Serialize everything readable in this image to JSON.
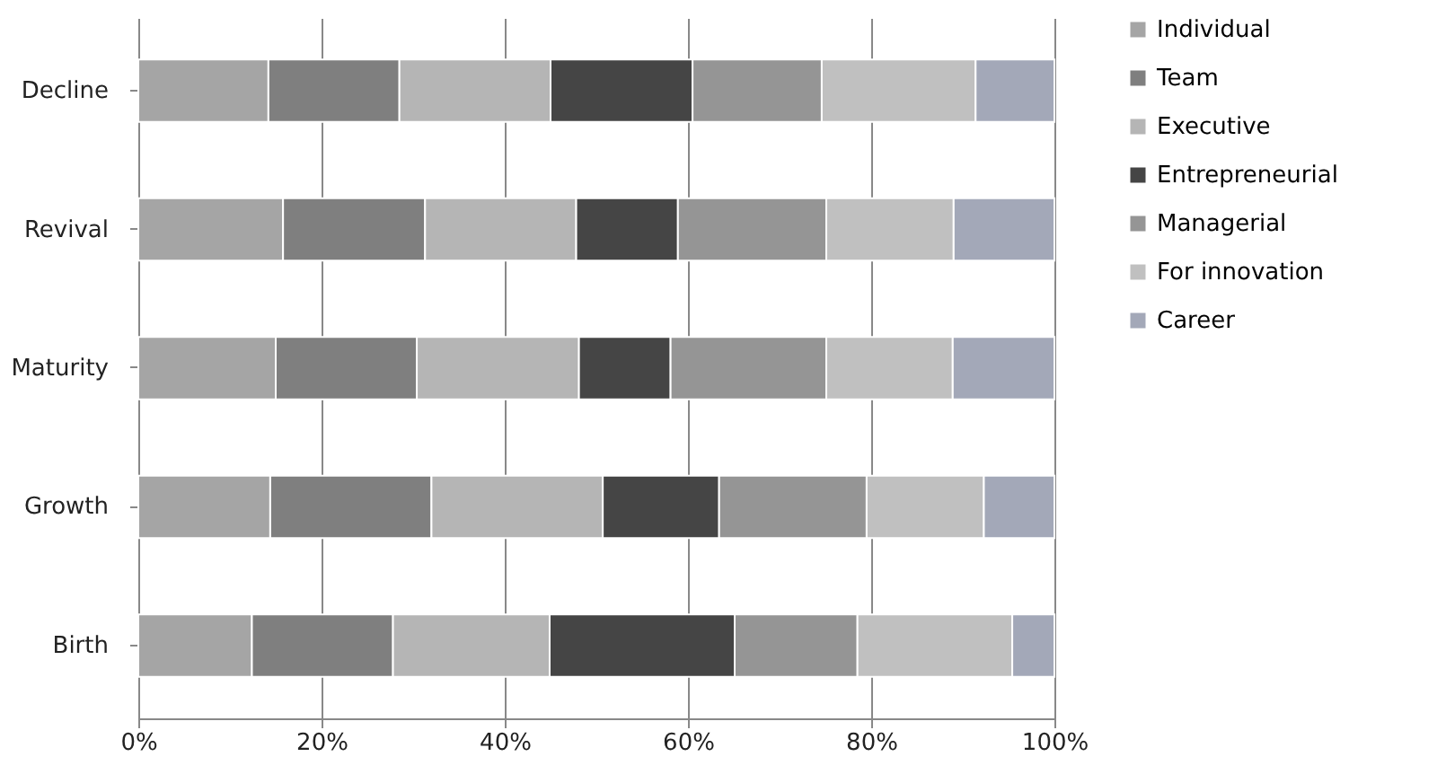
{
  "chart_data": {
    "type": "bar",
    "orientation": "horizontal",
    "stacked": true,
    "categories": [
      "Decline",
      "Revival",
      "Maturity",
      "Growth",
      "Birth"
    ],
    "series": [
      {
        "name": "Individual",
        "color": "#a5a5a5",
        "values": [
          14.2,
          15.8,
          15.0,
          14.4,
          12.4
        ]
      },
      {
        "name": "Team",
        "color": "#7f7f7f",
        "values": [
          14.3,
          15.5,
          15.4,
          17.6,
          15.4
        ]
      },
      {
        "name": "Executive",
        "color": "#b5b5b5",
        "values": [
          16.5,
          16.5,
          17.7,
          18.7,
          17.1
        ]
      },
      {
        "name": "Entrepreneurial",
        "color": "#454545",
        "values": [
          15.5,
          11.1,
          10.0,
          12.7,
          20.2
        ]
      },
      {
        "name": "Managerial",
        "color": "#959595",
        "values": [
          14.1,
          16.2,
          17.0,
          16.1,
          13.4
        ]
      },
      {
        "name": "For innovation",
        "color": "#c0c0c0",
        "values": [
          16.8,
          13.9,
          13.8,
          12.8,
          16.9
        ]
      },
      {
        "name": "Career",
        "color": "#a3a8b8",
        "values": [
          8.6,
          11.0,
          11.1,
          7.7,
          4.6
        ]
      }
    ],
    "xlim": [
      0,
      100
    ],
    "xticks": [
      {
        "value": 0,
        "label": "0%"
      },
      {
        "value": 20,
        "label": "20%"
      },
      {
        "value": 40,
        "label": "40%"
      },
      {
        "value": 60,
        "label": "60%"
      },
      {
        "value": 80,
        "label": "80%"
      },
      {
        "value": 100,
        "label": "100%"
      }
    ],
    "grid": "x",
    "legend": "right"
  }
}
